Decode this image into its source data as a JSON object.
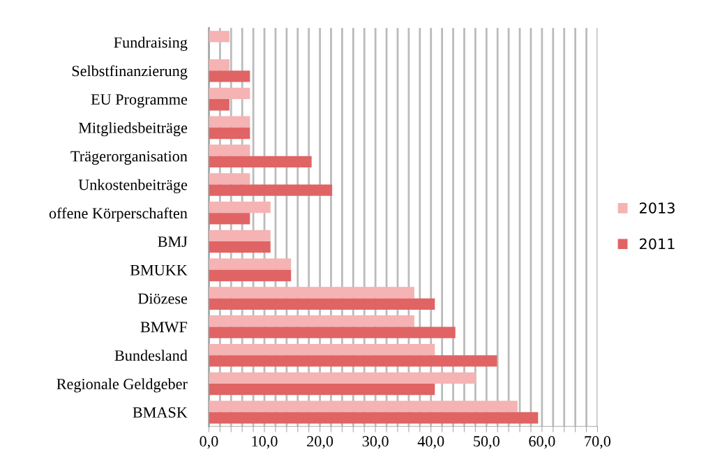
{
  "chart_data": {
    "type": "bar",
    "orientation": "horizontal",
    "categories": [
      "Fundraising",
      "Selbstfinanzierung",
      "EU Programme",
      "Mitgliedsbeiträge",
      "Trägerorganisation",
      "Unkostenbeiträge",
      "offene Körperschaften",
      "BMJ",
      "BMUKK",
      "Diözese",
      "BMWF",
      "Bundesland",
      "Regionale Geldgeber",
      "BMASK"
    ],
    "series": [
      {
        "name": "2013",
        "color": "#f5b3b3",
        "values": [
          3.7,
          3.7,
          7.4,
          7.4,
          7.4,
          7.4,
          11.1,
          11.1,
          14.8,
          37.0,
          37.0,
          40.7,
          48.1,
          55.6
        ]
      },
      {
        "name": "2011",
        "color": "#e06464",
        "values": [
          null,
          7.4,
          3.7,
          7.4,
          18.5,
          22.2,
          7.4,
          11.1,
          14.8,
          40.7,
          44.4,
          51.9,
          40.7,
          59.3
        ]
      }
    ],
    "xlim": [
      0,
      70
    ],
    "xticks": [
      {
        "value": 0,
        "label": "0,0"
      },
      {
        "value": 2,
        "label": null
      },
      {
        "value": 4,
        "label": null
      },
      {
        "value": 6,
        "label": null
      },
      {
        "value": 8,
        "label": null
      },
      {
        "value": 10,
        "label": "10,0"
      },
      {
        "value": 12,
        "label": null
      },
      {
        "value": 14,
        "label": null
      },
      {
        "value": 16,
        "label": null
      },
      {
        "value": 18,
        "label": null
      },
      {
        "value": 20,
        "label": "20,0"
      },
      {
        "value": 22,
        "label": null
      },
      {
        "value": 24,
        "label": null
      },
      {
        "value": 26,
        "label": null
      },
      {
        "value": 28,
        "label": null
      },
      {
        "value": 30,
        "label": "30,0"
      },
      {
        "value": 32,
        "label": null
      },
      {
        "value": 34,
        "label": null
      },
      {
        "value": 36,
        "label": null
      },
      {
        "value": 38,
        "label": null
      },
      {
        "value": 40,
        "label": "40,0"
      },
      {
        "value": 42,
        "label": null
      },
      {
        "value": 44,
        "label": null
      },
      {
        "value": 46,
        "label": null
      },
      {
        "value": 48,
        "label": null
      },
      {
        "value": 50,
        "label": "50,0"
      },
      {
        "value": 52,
        "label": null
      },
      {
        "value": 54,
        "label": null
      },
      {
        "value": 56,
        "label": null
      },
      {
        "value": 58,
        "label": null
      },
      {
        "value": 60,
        "label": "60,0"
      },
      {
        "value": 62,
        "label": null
      },
      {
        "value": 64,
        "label": null
      },
      {
        "value": 66,
        "label": null
      },
      {
        "value": 68,
        "label": null
      },
      {
        "value": 70,
        "label": "70,0"
      }
    ],
    "grid": "x",
    "legend": "right"
  }
}
